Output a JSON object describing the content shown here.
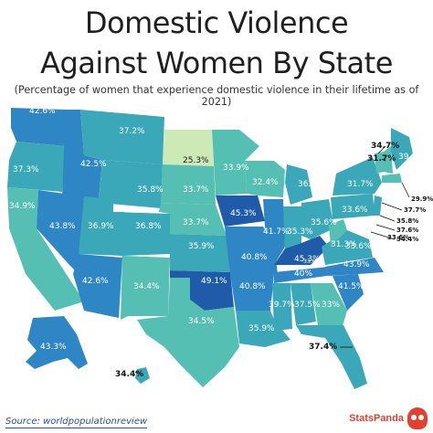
{
  "title_line1": "Domestic Violence",
  "title_line2": "Against Women By State",
  "subtitle": "(Percentage of women that experience domestic violence in their lifetime as of 2021)",
  "source": "Source: worldpopulationreview",
  "brand": "StatsPanda",
  "colors": {
    "light": "#cde9b6",
    "teal_light": "#55bfb3",
    "teal": "#3aa8b8",
    "blue": "#2e86c4",
    "dark_blue": "#1f5ba8"
  },
  "states": {
    "WA": "42.6%",
    "OR": "37.3%",
    "ID": "42.5%",
    "MT": "37.2%",
    "ND": "25.3%",
    "MN": "33.9%",
    "WI": "32.4%",
    "MI": "36.1%",
    "NY": "31.7%",
    "ME": "39.3%",
    "VT": "34.7%",
    "NH": "31.7%",
    "MA": "29.9%",
    "CT": "37.7%",
    "NJ": "35.8%",
    "DE": "37.6%",
    "MD": "34.4%",
    "RI": "33.6%",
    "PA": "33.6%",
    "OH": "35.6%",
    "WV": "31.3%",
    "VA": "33.6%",
    "NC": "43.9%",
    "SC": "41.5%",
    "GA": "33%",
    "FL": "37.4%",
    "AL": "37.5%",
    "MS": "39.7%",
    "TN": "40%",
    "KY": "45.3%",
    "IN": "35.3%",
    "IL": "41.7%",
    "IA": "45.3%",
    "MO": "40.8%",
    "AR": "40.8%",
    "LA": "35.9%",
    "TX": "34.5%",
    "OK": "49.1%",
    "KS": "35.9%",
    "NE": "33.7%",
    "SD": "33.7%",
    "WY": "35.8%",
    "CO": "36.8%",
    "UT": "36.9%",
    "NV": "43.8%",
    "CA": "34.9%",
    "AZ": "42.6%",
    "NM": "34.4%",
    "AK": "43.3%",
    "HI": "34.4%"
  }
}
